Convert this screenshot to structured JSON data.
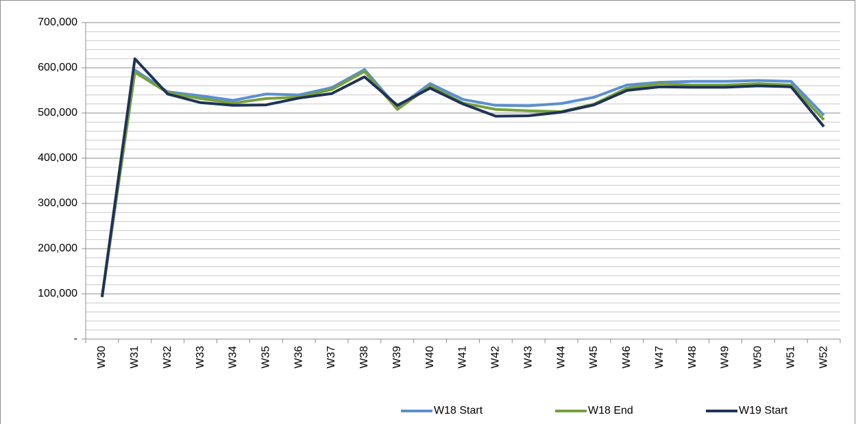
{
  "chart_data": {
    "type": "line",
    "categories": [
      "W30",
      "W31",
      "W32",
      "W33",
      "W34",
      "W35",
      "W36",
      "W37",
      "W38",
      "W39",
      "W40",
      "W41",
      "W42",
      "W43",
      "W44",
      "W45",
      "W46",
      "W47",
      "W48",
      "W49",
      "W50",
      "W51",
      "W52"
    ],
    "series": [
      {
        "name": "W18 Start",
        "color": "#5b8fd0",
        "values": [
          93000,
          595000,
          547000,
          538000,
          528000,
          542000,
          540000,
          556000,
          596000,
          512000,
          565000,
          530000,
          517000,
          516000,
          521000,
          535000,
          562000,
          568000,
          570000,
          570000,
          572000,
          570000,
          495000
        ]
      },
      {
        "name": "W18 End",
        "color": "#76a03c",
        "values": [
          93000,
          590000,
          545000,
          532000,
          522000,
          532000,
          535000,
          552000,
          592000,
          508000,
          560000,
          522000,
          508000,
          505000,
          503000,
          520000,
          555000,
          565000,
          562000,
          562000,
          565000,
          562000,
          485000
        ]
      },
      {
        "name": "W19 Start",
        "color": "#1f3358",
        "values": [
          93000,
          620000,
          542000,
          523000,
          517000,
          518000,
          533000,
          543000,
          580000,
          517000,
          555000,
          520000,
          493000,
          494000,
          502000,
          518000,
          550000,
          558000,
          557000,
          557000,
          560000,
          558000,
          470000
        ]
      }
    ],
    "ylim": [
      0,
      700000
    ],
    "yticks": [
      {
        "value": 0,
        "label": "-"
      },
      {
        "value": 100000,
        "label": "100,000"
      },
      {
        "value": 200000,
        "label": "200,000"
      },
      {
        "value": 300000,
        "label": "300,000"
      },
      {
        "value": 400000,
        "label": "400,000"
      },
      {
        "value": 500000,
        "label": "500,000"
      },
      {
        "value": 600000,
        "label": "600,000"
      },
      {
        "value": 700000,
        "label": "700,000"
      }
    ],
    "yminorticks": [
      20000,
      40000,
      60000,
      80000,
      120000,
      140000,
      160000,
      180000,
      220000,
      240000,
      260000,
      280000,
      320000,
      340000,
      360000,
      380000,
      420000,
      440000,
      460000,
      480000,
      520000,
      540000,
      560000,
      580000,
      620000,
      640000,
      660000,
      680000
    ],
    "grid": true,
    "legend": "bottom"
  }
}
